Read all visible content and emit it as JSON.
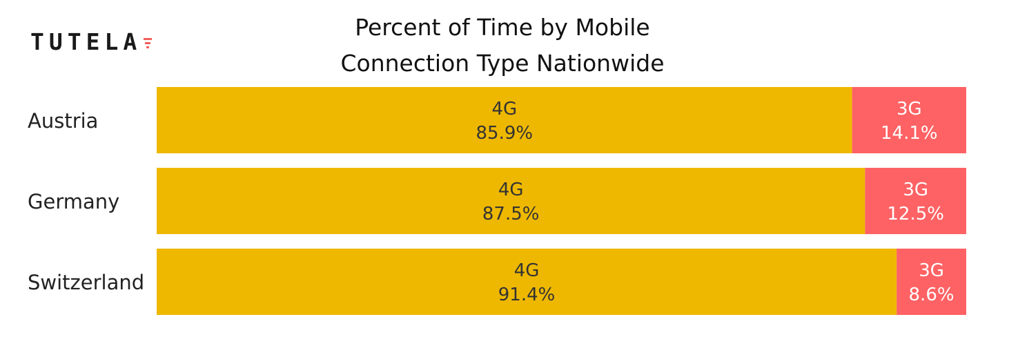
{
  "logo": {
    "text": "TUTELA",
    "mark_color": "#f25f5c"
  },
  "title_lines": [
    "Percent of Time by Mobile",
    "Connection Type Nationwide"
  ],
  "colors": {
    "4G": "#eeb800",
    "3G": "#fe6264",
    "text_on_4g": "#333333",
    "text_on_3g": "#ffffff",
    "category_text": "#222222"
  },
  "chart_data": {
    "type": "bar",
    "orientation": "horizontal",
    "stacked": true,
    "normalized": true,
    "title": "Percent of Time by Mobile Connection Type Nationwide",
    "categories": [
      "Austria",
      "Germany",
      "Switzerland"
    ],
    "series": [
      {
        "name": "4G",
        "values": [
          85.9,
          87.5,
          91.4
        ],
        "labels": [
          "85.9%",
          "87.5%",
          "91.4%"
        ]
      },
      {
        "name": "3G",
        "values": [
          14.1,
          12.5,
          8.6
        ],
        "labels": [
          "14.1%",
          "12.5%",
          "8.6%"
        ]
      }
    ],
    "xlim": [
      0,
      100
    ],
    "grid": false
  }
}
